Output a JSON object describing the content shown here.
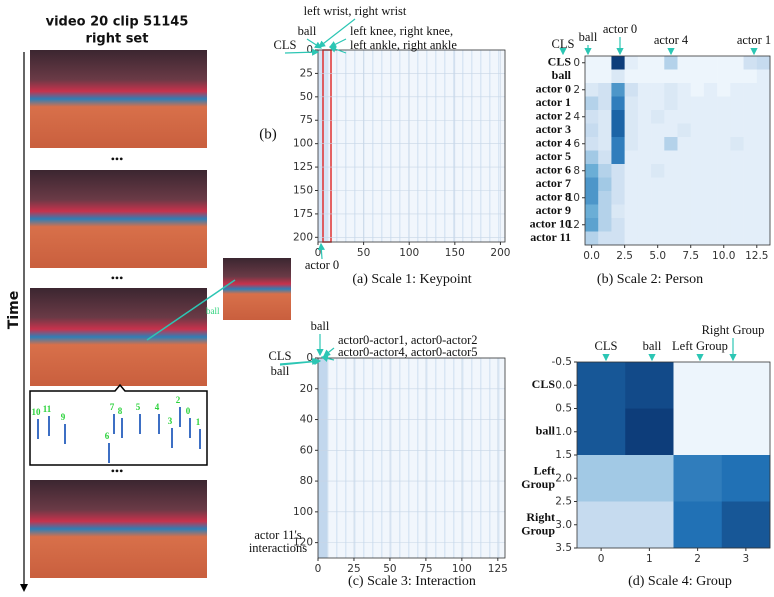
{
  "video": {
    "title_lines": [
      "video 20 clip 51145",
      "right set"
    ],
    "ellipsis": "•••",
    "time_label": "Time",
    "ball_label": "ball",
    "player_ids": [
      "10",
      "11",
      "9",
      "7",
      "8",
      "6",
      "5",
      "4",
      "3",
      "2",
      "0",
      "1"
    ]
  },
  "panel_label": "(b)",
  "chart_data": [
    {
      "type": "texture",
      "caption": "(a) Scale 1: Keypoint",
      "annotations": [
        "left wrist, right wrist",
        "ball",
        "CLS",
        "left knee, right knee,",
        "left ankle, right ankle",
        "actor 0"
      ],
      "xlim": [
        0,
        205
      ],
      "ylim": [
        0,
        205
      ],
      "xticks": [
        0,
        50,
        100,
        150,
        200
      ],
      "yticks": [
        0,
        25,
        50,
        75,
        100,
        125,
        150,
        175,
        200
      ]
    },
    {
      "type": "heatmap",
      "caption": "(b) Scale 2: Person",
      "annotations": [
        "CLS",
        "ball",
        "actor 0",
        "actor 4",
        "actor 1"
      ],
      "row_labels": [
        "CLS",
        "ball",
        "actor 0",
        "actor 1",
        "actor 2",
        "actor 3",
        "actor 4",
        "actor 5",
        "actor 6",
        "actor 7",
        "actor 8",
        "actor 9",
        "actor 10",
        "actor 11"
      ],
      "xlim": [
        -0.5,
        13.5
      ],
      "ylim": [
        -0.5,
        13.5
      ],
      "xticks": [
        {
          "value": 0,
          "label": "0.0"
        },
        2.5,
        {
          "value": 5,
          "label": "5.0"
        },
        7.5,
        {
          "value": 10,
          "label": "10.0"
        },
        12.5
      ],
      "yticks": [
        0,
        2,
        4,
        6,
        8,
        10,
        12
      ],
      "values": [
        [
          0.05,
          0.05,
          0.95,
          0.1,
          0.05,
          0.05,
          0.3,
          0.05,
          0.05,
          0.05,
          0.05,
          0.05,
          0.2,
          0.25
        ],
        [
          0.05,
          0.05,
          0.15,
          0.05,
          0.05,
          0.05,
          0.05,
          0.05,
          0.05,
          0.05,
          0.05,
          0.05,
          0.05,
          0.1
        ],
        [
          0.15,
          0.2,
          0.6,
          0.2,
          0.1,
          0.1,
          0.15,
          0.1,
          0.05,
          0.1,
          0.05,
          0.1,
          0.1,
          0.1
        ],
        [
          0.3,
          0.2,
          0.7,
          0.15,
          0.1,
          0.1,
          0.15,
          0.1,
          0.1,
          0.1,
          0.1,
          0.1,
          0.1,
          0.1
        ],
        [
          0.2,
          0.15,
          0.8,
          0.15,
          0.1,
          0.15,
          0.1,
          0.1,
          0.1,
          0.1,
          0.1,
          0.1,
          0.1,
          0.1
        ],
        [
          0.25,
          0.15,
          0.8,
          0.15,
          0.1,
          0.1,
          0.1,
          0.15,
          0.1,
          0.1,
          0.1,
          0.1,
          0.1,
          0.1
        ],
        [
          0.2,
          0.15,
          0.7,
          0.15,
          0.1,
          0.1,
          0.3,
          0.1,
          0.1,
          0.1,
          0.1,
          0.15,
          0.1,
          0.1
        ],
        [
          0.35,
          0.2,
          0.7,
          0.1,
          0.1,
          0.1,
          0.1,
          0.1,
          0.1,
          0.1,
          0.1,
          0.1,
          0.1,
          0.1
        ],
        [
          0.5,
          0.3,
          0.2,
          0.1,
          0.1,
          0.15,
          0.1,
          0.1,
          0.1,
          0.1,
          0.1,
          0.1,
          0.1,
          0.1
        ],
        [
          0.6,
          0.35,
          0.2,
          0.1,
          0.1,
          0.1,
          0.1,
          0.1,
          0.1,
          0.1,
          0.1,
          0.1,
          0.1,
          0.1
        ],
        [
          0.6,
          0.3,
          0.2,
          0.1,
          0.1,
          0.1,
          0.1,
          0.1,
          0.1,
          0.1,
          0.1,
          0.1,
          0.1,
          0.1
        ],
        [
          0.5,
          0.3,
          0.15,
          0.1,
          0.1,
          0.1,
          0.1,
          0.1,
          0.1,
          0.1,
          0.1,
          0.1,
          0.1,
          0.1
        ],
        [
          0.55,
          0.3,
          0.2,
          0.1,
          0.1,
          0.1,
          0.1,
          0.1,
          0.1,
          0.1,
          0.1,
          0.1,
          0.1,
          0.1
        ],
        [
          0.3,
          0.2,
          0.2,
          0.1,
          0.1,
          0.1,
          0.1,
          0.1,
          0.1,
          0.1,
          0.1,
          0.1,
          0.1,
          0.1
        ]
      ]
    },
    {
      "type": "texture",
      "caption": "(c) Scale 3: Interaction",
      "annotations": [
        "ball",
        "actor0-actor1, actor0-actor2",
        "CLS",
        "ball",
        "actor0-actor4, actor0-actor5",
        "actor 11's",
        "interactions"
      ],
      "xlim": [
        0,
        130
      ],
      "ylim": [
        0,
        130
      ],
      "xticks": [
        0,
        25,
        50,
        75,
        100,
        125
      ],
      "yticks": [
        0,
        20,
        40,
        60,
        80,
        100,
        120
      ]
    },
    {
      "type": "heatmap",
      "caption": "(d) Scale 4: Group",
      "annotations": [
        "CLS",
        "ball",
        "Left Group",
        "Right Group"
      ],
      "row_labels": [
        "CLS",
        "ball",
        "Left\nGroup",
        "Right\nGroup"
      ],
      "xlim": [
        -0.5,
        3.5
      ],
      "ylim": [
        -0.5,
        3.5
      ],
      "xticks": [
        0,
        1,
        2,
        3
      ],
      "yticks": [
        -0.5,
        {
          "value": 0,
          "label": "0.0"
        },
        0.5,
        {
          "value": 1,
          "label": "1.0"
        },
        1.5,
        {
          "value": 2,
          "label": "2.0"
        },
        2.5,
        {
          "value": 3,
          "label": "3.0"
        },
        3.5
      ],
      "values": [
        [
          0.85,
          0.9,
          0.05,
          0.05
        ],
        [
          0.85,
          0.95,
          0.05,
          0.05
        ],
        [
          0.35,
          0.35,
          0.7,
          0.75
        ],
        [
          0.25,
          0.25,
          0.75,
          0.85
        ]
      ]
    }
  ]
}
